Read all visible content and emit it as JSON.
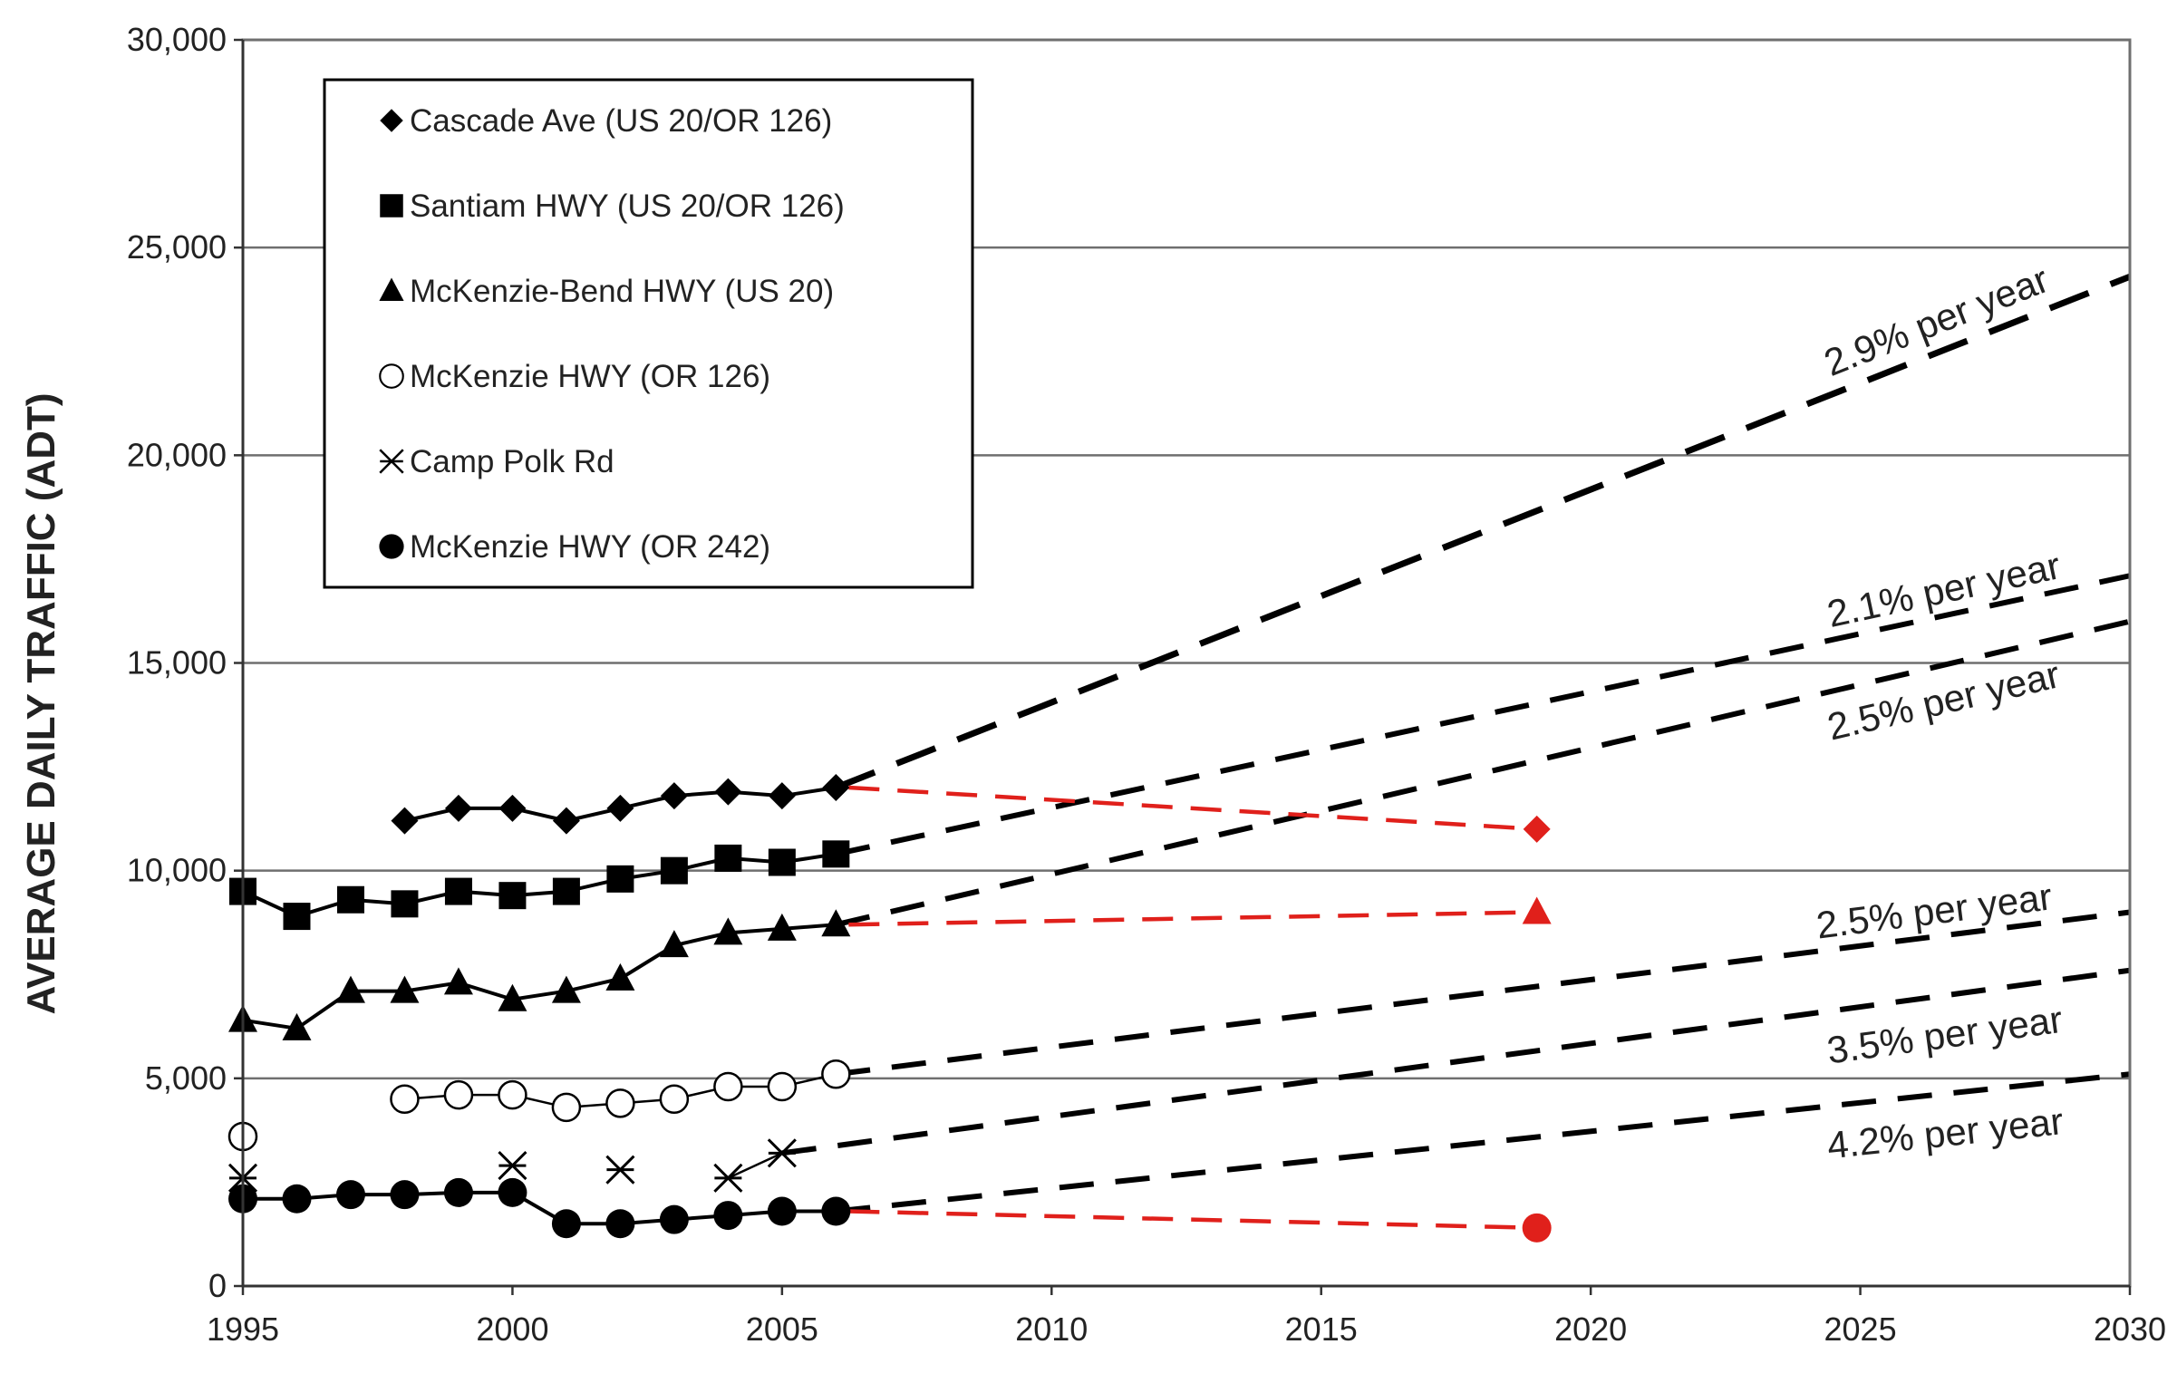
{
  "chart_data": {
    "type": "line",
    "title": "",
    "xlabel": "",
    "ylabel": "AVERAGE DAILY TRAFFIC (ADT)",
    "xlim": [
      1995,
      2030
    ],
    "ylim": [
      0,
      30000
    ],
    "xticks": [
      1995,
      2000,
      2005,
      2010,
      2015,
      2020,
      2025,
      2030
    ],
    "yticks": [
      0,
      5000,
      10000,
      15000,
      20000,
      25000,
      30000
    ],
    "xtick_labels": [
      "1995",
      "2000",
      "2005",
      "2010",
      "2015",
      "2020",
      "2025",
      "2030"
    ],
    "ytick_labels": [
      "0",
      "5,000",
      "10,000",
      "15,000",
      "20,000",
      "25,000",
      "30,000"
    ],
    "grid": "horizontal",
    "legend_position": "top-left",
    "series": [
      {
        "name": "Cascade Ave (US 20/OR 126)",
        "marker": "diamond",
        "color": "#000000",
        "x": [
          1998,
          1999,
          2000,
          2001,
          2002,
          2003,
          2004,
          2005,
          2006
        ],
        "values": [
          11200,
          11500,
          11500,
          11200,
          11500,
          11800,
          11900,
          11800,
          12000
        ]
      },
      {
        "name": "Santiam HWY (US 20/OR 126)",
        "marker": "square",
        "color": "#000000",
        "x": [
          1995,
          1996,
          1997,
          1998,
          1999,
          2000,
          2001,
          2002,
          2003,
          2004,
          2005,
          2006
        ],
        "values": [
          9500,
          8900,
          9300,
          9200,
          9500,
          9400,
          9500,
          9800,
          10000,
          10300,
          10200,
          10400
        ]
      },
      {
        "name": "McKenzie-Bend HWY (US 20)",
        "marker": "triangle",
        "color": "#000000",
        "x": [
          1995,
          1996,
          1997,
          1998,
          1999,
          2000,
          2001,
          2002,
          2003,
          2004,
          2005,
          2006
        ],
        "values": [
          6400,
          6200,
          7100,
          7100,
          7300,
          6900,
          7100,
          7400,
          8200,
          8500,
          8600,
          8700
        ]
      },
      {
        "name": "McKenzie HWY (OR 126)",
        "marker": "open-circle",
        "color": "#000000",
        "x": [
          1995,
          1998,
          1999,
          2000,
          2001,
          2002,
          2003,
          2004,
          2005,
          2006
        ],
        "values": [
          3600,
          4500,
          4600,
          4600,
          4300,
          4400,
          4500,
          4800,
          4800,
          5100
        ],
        "connected_from": 1998
      },
      {
        "name": "Camp Polk Rd",
        "marker": "asterisk",
        "color": "#000000",
        "x": [
          1995,
          2000,
          2002,
          2004,
          2005
        ],
        "values": [
          2600,
          2900,
          2800,
          2600,
          3200
        ],
        "connected_from": 2004
      },
      {
        "name": "McKenzie HWY (OR 242)",
        "marker": "filled-circle",
        "color": "#000000",
        "x": [
          1995,
          1996,
          1997,
          1998,
          1999,
          2000,
          2001,
          2002,
          2003,
          2004,
          2005,
          2006
        ],
        "values": [
          2100,
          2100,
          2200,
          2200,
          2250,
          2250,
          1500,
          1500,
          1600,
          1700,
          1800,
          1800
        ]
      }
    ],
    "projections": [
      {
        "label": "2.9% per year",
        "x": [
          2006,
          2030
        ],
        "values": [
          12000,
          24300
        ]
      },
      {
        "label": "2.1% per year",
        "x": [
          2006,
          2030
        ],
        "values": [
          10400,
          17100
        ]
      },
      {
        "label": "2.5% per year",
        "x": [
          2006,
          2030
        ],
        "values": [
          8700,
          16000
        ]
      },
      {
        "label": "2.5% per year",
        "x": [
          2006,
          2030
        ],
        "values": [
          5100,
          9000
        ]
      },
      {
        "label": "3.5% per year",
        "x": [
          2005,
          2030
        ],
        "values": [
          3200,
          7600
        ]
      },
      {
        "label": "4.2% per year",
        "x": [
          2006,
          2030
        ],
        "values": [
          1800,
          5100
        ]
      }
    ],
    "observed_2019": [
      {
        "series": "Cascade Ave (US 20/OR 126)",
        "marker": "diamond",
        "color": "#e0201b",
        "x": [
          2006,
          2019
        ],
        "values": [
          12000,
          11000
        ]
      },
      {
        "series": "McKenzie-Bend HWY (US 20)",
        "marker": "triangle",
        "color": "#e0201b",
        "x": [
          2006,
          2019
        ],
        "values": [
          8700,
          9000
        ]
      },
      {
        "series": "McKenzie HWY (OR 242)",
        "marker": "filled-circle",
        "color": "#e0201b",
        "x": [
          2006,
          2019
        ],
        "values": [
          1800,
          1400
        ]
      }
    ]
  }
}
